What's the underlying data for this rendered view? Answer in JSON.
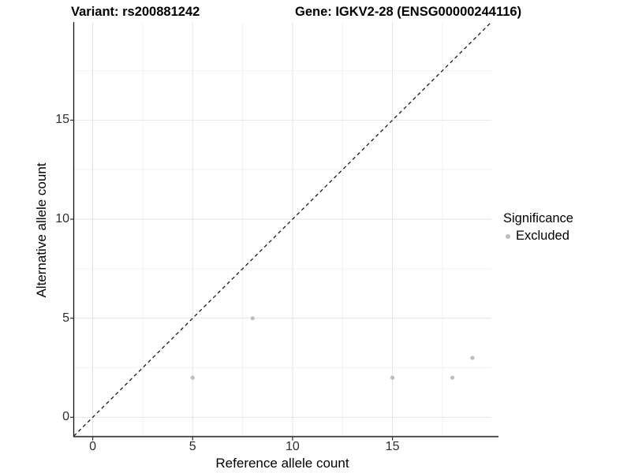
{
  "titles": {
    "variant": "Variant: rs200881242",
    "gene": "Gene: IGKV2-28 (ENSG00000244116)"
  },
  "chart_data": {
    "type": "scatter",
    "title": "Variant: rs200881242 — Gene: IGKV2-28 (ENSG00000244116)",
    "xlabel": "Reference allele count",
    "ylabel": "Alternative allele count",
    "xlim": [
      -0.95,
      19.95
    ],
    "ylim": [
      -0.95,
      19.95
    ],
    "x_ticks": [
      0,
      5,
      10,
      15
    ],
    "y_ticks": [
      0,
      5,
      10,
      15
    ],
    "x_minor_ticks": [
      2.5,
      7.5,
      12.5,
      17.5
    ],
    "y_minor_ticks": [
      2.5,
      7.5,
      12.5,
      17.5
    ],
    "grid": true,
    "identity_line": {
      "style": "dashed",
      "from": [
        -0.95,
        -0.95
      ],
      "to": [
        19.95,
        19.95
      ]
    },
    "series": [
      {
        "name": "Excluded",
        "color": "#bdbdbd",
        "points": [
          [
            5,
            2
          ],
          [
            8,
            5
          ],
          [
            15,
            2
          ],
          [
            18,
            2
          ],
          [
            19,
            3
          ]
        ]
      }
    ],
    "legend": {
      "title": "Significance",
      "position": "right",
      "entries": [
        {
          "label": "Excluded",
          "color": "#bdbdbd"
        }
      ]
    }
  },
  "colors": {
    "background": "#ffffff",
    "grid_major": "#e4e4e4",
    "grid_minor": "#f2f2f2",
    "axis_line": "#333333",
    "tick_text": "#2e2e2e",
    "dashed_line": "#1a1a1a",
    "point": "#bdbdbd"
  }
}
